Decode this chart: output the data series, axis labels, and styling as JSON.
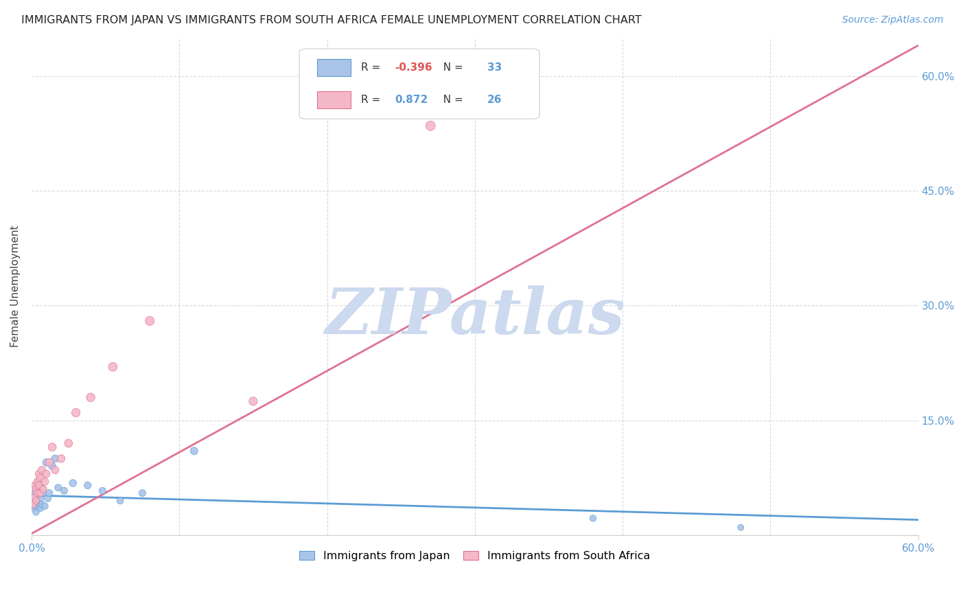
{
  "title": "IMMIGRANTS FROM JAPAN VS IMMIGRANTS FROM SOUTH AFRICA FEMALE UNEMPLOYMENT CORRELATION CHART",
  "source": "Source: ZipAtlas.com",
  "ylabel": "Female Unemployment",
  "xlim": [
    0.0,
    0.6
  ],
  "ylim": [
    0.0,
    0.65
  ],
  "xtick_vals": [
    0.0,
    0.6
  ],
  "xtick_labels": [
    "0.0%",
    "60.0%"
  ],
  "ytick_vals": [
    0.0,
    0.15,
    0.3,
    0.45,
    0.6
  ],
  "ytick_labels_left": [
    "",
    "",
    "",
    "",
    ""
  ],
  "ytick_labels_right": [
    "",
    "15.0%",
    "30.0%",
    "45.0%",
    "60.0%"
  ],
  "background_color": "#ffffff",
  "grid_color": "#d8d8d8",
  "watermark_text": "ZIPatlas",
  "watermark_color": "#ccd9ee",
  "japan_color": "#aac4e8",
  "japan_line_color": "#5b9bd5",
  "sa_color": "#f4b8c8",
  "sa_line_color": "#e07090",
  "japan_R": "-0.396",
  "japan_N": "33",
  "sa_R": "0.872",
  "sa_N": "26",
  "legend_label_japan": "Immigrants from Japan",
  "legend_label_sa": "Immigrants from South Africa",
  "japan_x": [
    0.001,
    0.002,
    0.002,
    0.003,
    0.003,
    0.003,
    0.004,
    0.004,
    0.004,
    0.005,
    0.005,
    0.005,
    0.006,
    0.006,
    0.007,
    0.007,
    0.008,
    0.009,
    0.01,
    0.011,
    0.012,
    0.014,
    0.016,
    0.018,
    0.022,
    0.028,
    0.038,
    0.048,
    0.06,
    0.075,
    0.11,
    0.38,
    0.48
  ],
  "japan_y": [
    0.04,
    0.035,
    0.055,
    0.03,
    0.045,
    0.06,
    0.038,
    0.05,
    0.065,
    0.042,
    0.055,
    0.07,
    0.035,
    0.048,
    0.04,
    0.062,
    0.055,
    0.038,
    0.095,
    0.048,
    0.055,
    0.09,
    0.1,
    0.062,
    0.058,
    0.068,
    0.065,
    0.058,
    0.045,
    0.055,
    0.11,
    0.022,
    0.01
  ],
  "japan_sizes": [
    50,
    48,
    52,
    45,
    50,
    52,
    48,
    50,
    55,
    50,
    52,
    55,
    45,
    50,
    48,
    52,
    50,
    48,
    60,
    50,
    52,
    58,
    60,
    52,
    55,
    58,
    55,
    52,
    50,
    52,
    62,
    45,
    42
  ],
  "sa_x": [
    0.001,
    0.002,
    0.002,
    0.003,
    0.003,
    0.004,
    0.004,
    0.005,
    0.005,
    0.006,
    0.006,
    0.007,
    0.008,
    0.009,
    0.01,
    0.012,
    0.014,
    0.016,
    0.02,
    0.025,
    0.03,
    0.04,
    0.055,
    0.08,
    0.15,
    0.27
  ],
  "sa_y": [
    0.04,
    0.05,
    0.065,
    0.045,
    0.06,
    0.07,
    0.055,
    0.065,
    0.08,
    0.055,
    0.075,
    0.085,
    0.06,
    0.07,
    0.08,
    0.095,
    0.115,
    0.085,
    0.1,
    0.12,
    0.16,
    0.18,
    0.22,
    0.28,
    0.175,
    0.535
  ],
  "sa_sizes": [
    50,
    55,
    58,
    52,
    55,
    60,
    55,
    58,
    62,
    55,
    60,
    65,
    55,
    60,
    62,
    68,
    72,
    62,
    68,
    72,
    78,
    80,
    85,
    90,
    78,
    100
  ],
  "japan_trend_x": [
    0.0,
    0.6
  ],
  "japan_trend_y": [
    0.052,
    0.02
  ],
  "sa_trend_x": [
    0.0,
    0.6
  ],
  "sa_trend_y": [
    0.002,
    0.64
  ]
}
